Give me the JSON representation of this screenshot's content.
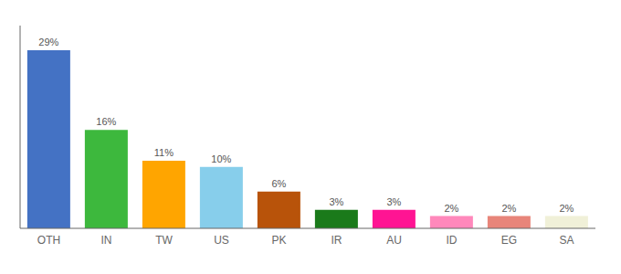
{
  "chart_data": {
    "type": "bar",
    "categories": [
      "OTH",
      "IN",
      "TW",
      "US",
      "PK",
      "IR",
      "AU",
      "ID",
      "EG",
      "SA"
    ],
    "values": [
      29,
      16,
      11,
      10,
      6,
      3,
      3,
      2,
      2,
      2
    ],
    "value_labels": [
      "29%",
      "16%",
      "11%",
      "10%",
      "6%",
      "3%",
      "3%",
      "2%",
      "2%",
      "2%"
    ],
    "colors": [
      "#4472c4",
      "#3db83d",
      "#ffa500",
      "#87ceeb",
      "#b8530a",
      "#1a7a1a",
      "#ff1493",
      "#ff88bb",
      "#e8857a",
      "#f0f0d8"
    ],
    "ylim": [
      0,
      33
    ],
    "tick_labels": "x",
    "grid": false
  }
}
